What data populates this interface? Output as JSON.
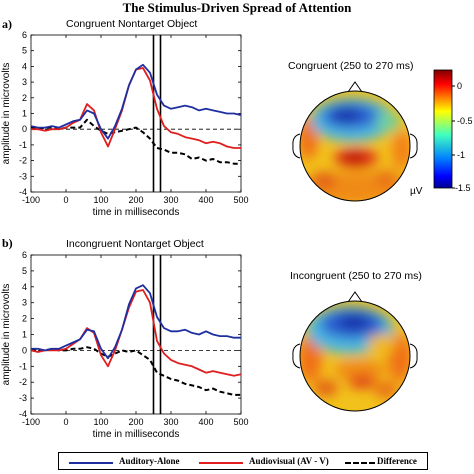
{
  "title": "The Stimulus-Driven Spread of Attention",
  "colors": {
    "auditory": "#1f2fa0",
    "audiovisual": "#e01e1e",
    "difference": "#000000"
  },
  "legend": {
    "auditory": "Auditory-Alone",
    "audiovisual": "Audiovisual (AV - V)",
    "difference": "Difference"
  },
  "chart_data": [
    {
      "type": "line",
      "panel_letter": "a)",
      "title": "Congruent Nontarget Object",
      "xlabel": "time in milliseconds",
      "ylabel": "amplitude in microvolts",
      "xlim": [
        -100,
        500
      ],
      "ylim": [
        -4,
        6
      ],
      "xticks": [
        "-100",
        "0",
        "100",
        "200",
        "300",
        "400",
        "500"
      ],
      "yticks": [
        "6",
        "5",
        "4",
        "3",
        "2",
        "1",
        "0",
        "-1",
        "-2",
        "-3",
        "-4"
      ],
      "vlines": [
        250,
        270
      ],
      "x": [
        -100,
        -80,
        -60,
        -40,
        -20,
        0,
        20,
        40,
        60,
        80,
        100,
        120,
        140,
        160,
        180,
        200,
        220,
        240,
        260,
        280,
        300,
        320,
        340,
        360,
        380,
        400,
        420,
        440,
        460,
        480,
        500
      ],
      "series": [
        {
          "key": "auditory",
          "values": [
            0.2,
            0.1,
            0.1,
            0.2,
            0.1,
            0.3,
            0.5,
            0.6,
            1.2,
            1.0,
            0.0,
            -0.6,
            0.2,
            1.3,
            2.8,
            3.8,
            4.1,
            3.6,
            2.2,
            1.5,
            1.3,
            1.4,
            1.5,
            1.4,
            1.2,
            1.3,
            1.2,
            1.1,
            1.0,
            1.0,
            0.9
          ]
        },
        {
          "key": "audiovisual",
          "values": [
            0.0,
            0.0,
            -0.1,
            0.0,
            0.0,
            0.1,
            0.4,
            0.6,
            1.6,
            1.2,
            -0.2,
            -1.1,
            0.0,
            1.2,
            2.8,
            3.8,
            3.9,
            3.1,
            1.3,
            0.2,
            -0.2,
            -0.3,
            -0.5,
            -0.6,
            -0.7,
            -0.9,
            -0.8,
            -0.9,
            -1.1,
            -1.2,
            -1.2
          ]
        },
        {
          "key": "difference",
          "values": [
            0.1,
            0.0,
            0.1,
            0.1,
            0.0,
            0.1,
            0.1,
            0.1,
            0.6,
            0.2,
            -0.1,
            -0.3,
            -0.2,
            -0.1,
            0.0,
            0.1,
            -0.2,
            -0.6,
            -1.2,
            -1.3,
            -1.5,
            -1.5,
            -1.6,
            -1.9,
            -1.8,
            -2.0,
            -1.9,
            -2.1,
            -2.1,
            -2.2,
            -2.2
          ]
        }
      ]
    },
    {
      "type": "line",
      "panel_letter": "b)",
      "title": "Incongruent Nontarget Object",
      "xlabel": "time in milliseconds",
      "ylabel": "amplitude in microvolts",
      "xlim": [
        -100,
        500
      ],
      "ylim": [
        -4,
        6
      ],
      "xticks": [
        "-100",
        "0",
        "100",
        "200",
        "300",
        "400",
        "500"
      ],
      "yticks": [
        "6",
        "5",
        "4",
        "3",
        "2",
        "1",
        "0",
        "-1",
        "-2",
        "-3",
        "-4"
      ],
      "vlines": [
        250,
        270
      ],
      "x": [
        -100,
        -80,
        -60,
        -40,
        -20,
        0,
        20,
        40,
        60,
        80,
        100,
        120,
        140,
        160,
        180,
        200,
        220,
        240,
        260,
        280,
        300,
        320,
        340,
        360,
        380,
        400,
        420,
        440,
        460,
        480,
        500
      ],
      "series": [
        {
          "key": "auditory",
          "values": [
            0.1,
            0.1,
            0.0,
            0.1,
            0.1,
            0.3,
            0.5,
            0.7,
            1.3,
            1.2,
            0.1,
            -0.5,
            0.2,
            1.3,
            2.9,
            3.9,
            4.1,
            3.6,
            2.1,
            1.4,
            1.2,
            1.2,
            1.3,
            1.1,
            1.0,
            1.2,
            1.0,
            0.9,
            0.9,
            0.8,
            0.8
          ]
        },
        {
          "key": "audiovisual",
          "values": [
            0.0,
            -0.1,
            0.0,
            0.0,
            0.0,
            0.1,
            0.4,
            0.7,
            1.4,
            1.1,
            -0.3,
            -1.0,
            0.0,
            1.3,
            2.7,
            3.7,
            3.8,
            3.0,
            0.6,
            -0.2,
            -0.6,
            -0.8,
            -0.9,
            -1.0,
            -1.2,
            -1.4,
            -1.3,
            -1.4,
            -1.5,
            -1.6,
            -1.5
          ]
        },
        {
          "key": "difference",
          "values": [
            0.0,
            0.0,
            0.0,
            0.1,
            0.0,
            0.0,
            0.1,
            0.1,
            0.2,
            0.1,
            -0.2,
            -0.4,
            -0.2,
            0.0,
            -0.1,
            0.0,
            -0.3,
            -0.6,
            -1.4,
            -1.6,
            -1.8,
            -1.9,
            -2.1,
            -2.2,
            -2.3,
            -2.5,
            -2.4,
            -2.6,
            -2.7,
            -2.8,
            -2.8
          ]
        }
      ]
    }
  ],
  "topomaps": [
    {
      "title": "Congruent (250 to 270 ms)"
    },
    {
      "title": "Incongruent (250 to 270 ms)"
    }
  ],
  "colorbar": {
    "ticks": [
      "0",
      "-0.5",
      "-1",
      "-1.5"
    ],
    "unit": "µV",
    "range": [
      -1.5,
      0.2
    ]
  }
}
